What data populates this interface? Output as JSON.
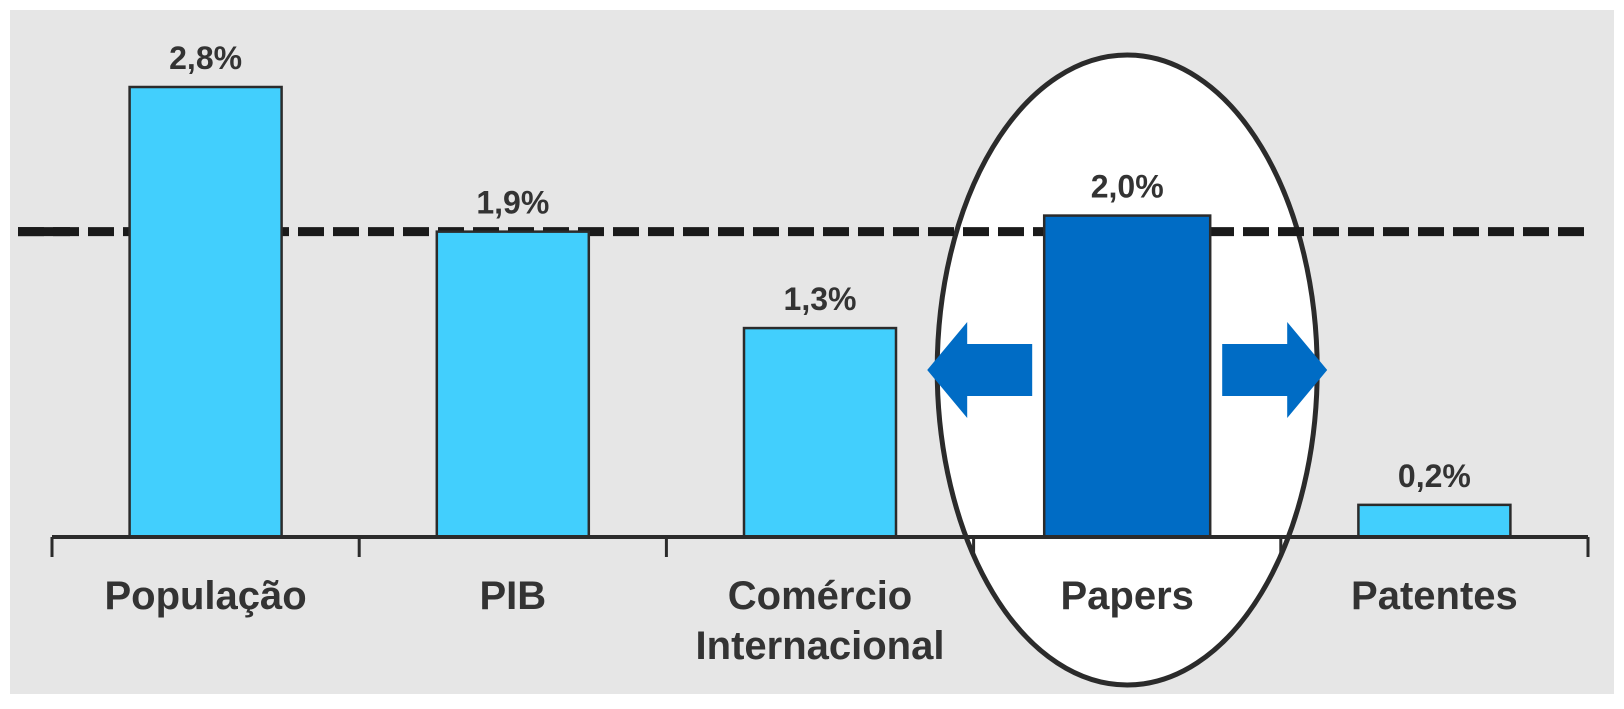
{
  "chart_data": {
    "type": "bar",
    "title": "",
    "xlabel": "",
    "ylabel": "",
    "ylim": [
      0,
      3.0
    ],
    "categories": [
      "População",
      "PIB",
      "Comércio\nInternacional",
      "Papers",
      "Patentes"
    ],
    "values": [
      2.8,
      1.9,
      1.3,
      2.0,
      0.2
    ],
    "value_labels": [
      "2,8%",
      "1,9%",
      "1,3%",
      "2,0%",
      "0,2%"
    ],
    "highlight_index": 3,
    "reference_line": {
      "value": 1.9,
      "style": "dashed"
    },
    "grid": false,
    "legend": "none",
    "annotations": [
      "ellipse around Papers",
      "left and right arrows around Papers"
    ]
  },
  "colors": {
    "background": "#e6e6e6",
    "bar": "#42cffd",
    "bar_highlight": "#006cc5",
    "bar_stroke": "#2b2b2b",
    "axis": "#2b2b2b",
    "reference_line": "#1a1a1a",
    "ellipse_fill": "#ffffff",
    "text": "#333333"
  }
}
